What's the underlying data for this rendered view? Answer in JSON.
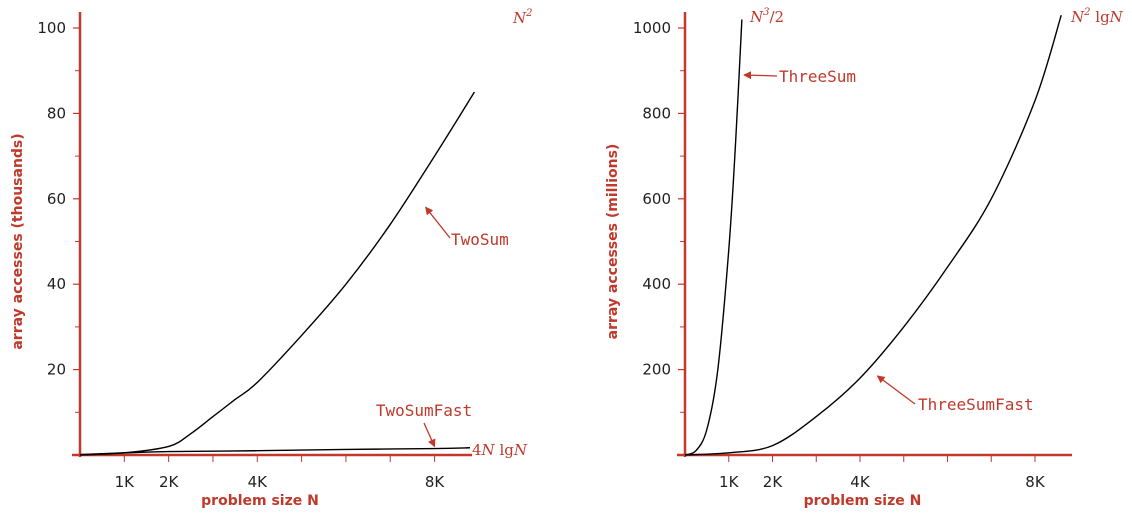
{
  "colors": {
    "axis": "#c0392b",
    "curve": "#000000",
    "label": "#c0392b",
    "tick_text": "#222222"
  },
  "chart_data": [
    {
      "type": "line",
      "xlabel": "problem size N",
      "ylabel": "array accesses (thousands)",
      "xlim": [
        0,
        8800
      ],
      "ylim": [
        0,
        100
      ],
      "x_ticks": [
        {
          "value": 1000,
          "label": "1K"
        },
        {
          "value": 2000,
          "label": "2K"
        },
        {
          "value": 4000,
          "label": "4K"
        },
        {
          "value": 8000,
          "label": "8K"
        }
      ],
      "x_minor_ticks": [
        1000,
        2000,
        3000,
        4000,
        5000,
        6000,
        7000,
        8000
      ],
      "y_ticks": [
        {
          "value": 20,
          "label": "20"
        },
        {
          "value": 40,
          "label": "40"
        },
        {
          "value": 60,
          "label": "60"
        },
        {
          "value": 80,
          "label": "80"
        },
        {
          "value": 100,
          "label": "100"
        }
      ],
      "y_minor_ticks": [
        10,
        30,
        50,
        70,
        90
      ],
      "series": [
        {
          "name": "TwoSum",
          "curve_label": "N²",
          "x": [
            0,
            1000,
            2000,
            2500,
            3000,
            3500,
            4000,
            5000,
            6000,
            7000,
            8000,
            8900
          ],
          "y": [
            0,
            0.5,
            2,
            5,
            9,
            13,
            17,
            28,
            40,
            54,
            70,
            85
          ]
        },
        {
          "name": "TwoSumFast",
          "curve_label": "4N lgN",
          "x": [
            0,
            1000,
            2000,
            4000,
            6000,
            8000,
            8800
          ],
          "y": [
            0.1,
            0.5,
            0.8,
            1.0,
            1.3,
            1.5,
            1.7
          ]
        }
      ],
      "annotations": [
        {
          "text": "TwoSum",
          "target_x": 7800,
          "target_y": 58
        },
        {
          "text": "TwoSumFast",
          "target_x": 8000,
          "target_y": 2
        }
      ],
      "curve_labels": [
        {
          "base": "N",
          "sup": "2"
        },
        {
          "prefix": "4",
          "base": "N",
          "mid": " lg",
          "end": "N"
        }
      ]
    },
    {
      "type": "line",
      "xlabel": "problem size N",
      "ylabel": "array accesses (millions)",
      "xlim": [
        0,
        8800
      ],
      "ylim": [
        0,
        1000
      ],
      "x_ticks": [
        {
          "value": 1000,
          "label": "1K"
        },
        {
          "value": 2000,
          "label": "2K"
        },
        {
          "value": 4000,
          "label": "4K"
        },
        {
          "value": 8000,
          "label": "8K"
        }
      ],
      "x_minor_ticks": [
        1000,
        2000,
        3000,
        4000,
        5000,
        6000,
        7000,
        8000
      ],
      "y_ticks": [
        {
          "value": 200,
          "label": "200"
        },
        {
          "value": 400,
          "label": "400"
        },
        {
          "value": 600,
          "label": "600"
        },
        {
          "value": 800,
          "label": "800"
        },
        {
          "value": 1000,
          "label": "1000"
        }
      ],
      "y_minor_ticks": [
        100,
        300,
        500,
        700,
        900
      ],
      "series": [
        {
          "name": "ThreeSum",
          "curve_label": "N³/2",
          "x": [
            0,
            250,
            500,
            750,
            1000,
            1150,
            1300
          ],
          "y": [
            0,
            10,
            60,
            200,
            480,
            720,
            1020
          ]
        },
        {
          "name": "ThreeSumFast",
          "curve_label": "N² lgN",
          "x": [
            0,
            1000,
            2000,
            3000,
            4000,
            5000,
            6000,
            7000,
            8000,
            8600
          ],
          "y": [
            0,
            5,
            22,
            90,
            180,
            300,
            440,
            600,
            830,
            1030
          ]
        }
      ],
      "annotations": [
        {
          "text": "ThreeSum",
          "target_x": 1350,
          "target_y": 890
        },
        {
          "text": "ThreeSumFast",
          "target_x": 4400,
          "target_y": 185
        }
      ],
      "curve_labels": [
        {
          "base": "N",
          "sup": "3",
          "after": "/2"
        },
        {
          "base": "N",
          "sup": "2",
          "mid": " lg",
          "end": "N"
        }
      ]
    }
  ]
}
